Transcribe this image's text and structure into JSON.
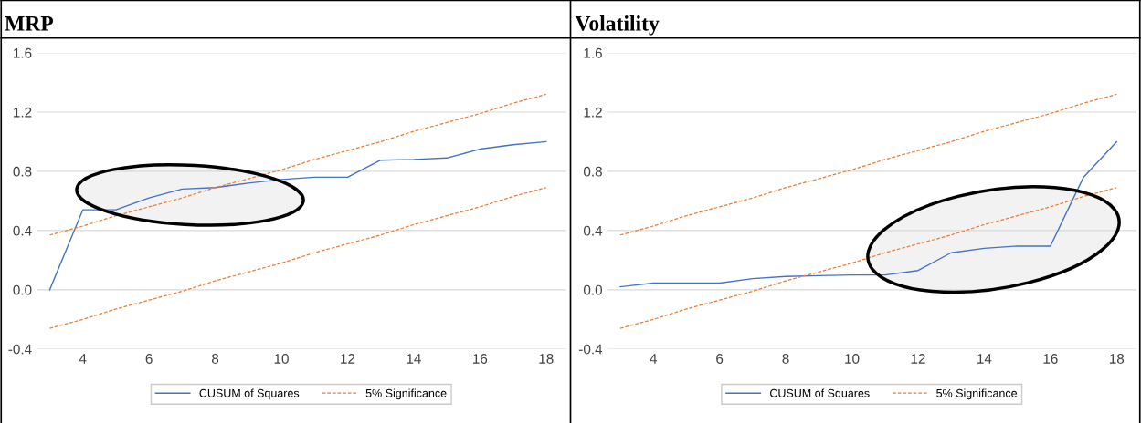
{
  "chart_data": [
    {
      "type": "line",
      "title": "MRP",
      "x": [
        3,
        4,
        5,
        6,
        7,
        8,
        9,
        10,
        11,
        12,
        13,
        14,
        15,
        16,
        17,
        18
      ],
      "xlim": [
        2.6,
        18.6
      ],
      "xticks": [
        4,
        6,
        8,
        10,
        12,
        14,
        16,
        18
      ],
      "ylim": [
        -0.4,
        1.6
      ],
      "yticks": [
        {
          "value": -0.4,
          "label": "-0.4"
        },
        {
          "value": 0,
          "label": "0.0"
        },
        {
          "value": 0.4,
          "label": "0.4"
        },
        {
          "value": 0.8,
          "label": "0.8"
        },
        {
          "value": 1.2,
          "label": "1.2"
        },
        {
          "value": 1.6,
          "label": "1.6"
        }
      ],
      "grid": "y",
      "legend": "bottom",
      "series": [
        {
          "name": "CUSUM of Squares",
          "color": "#4472c4",
          "line_style": "solid",
          "values": [
            0,
            0.54,
            0.54,
            0.62,
            0.68,
            0.69,
            0.72,
            0.745,
            0.76,
            0.76,
            0.875,
            0.88,
            0.89,
            0.95,
            0.98,
            1.0
          ]
        },
        {
          "name": "5% Significance",
          "color": "#ed7d31",
          "line_style": "dashed",
          "values": [
            0.37,
            0.43,
            0.5,
            0.56,
            0.62,
            0.69,
            0.75,
            0.81,
            0.88,
            0.94,
            1.0,
            1.07,
            1.13,
            1.19,
            1.26,
            1.32
          ]
        },
        {
          "color": "#ed7d31",
          "line_style": "dashed",
          "values": [
            -0.26,
            -0.2,
            -0.13,
            -0.07,
            -0.01,
            0.06,
            0.12,
            0.18,
            0.25,
            0.31,
            0.37,
            0.44,
            0.5,
            0.56,
            0.63,
            0.69
          ]
        }
      ]
    },
    {
      "type": "line",
      "title": "Volatility",
      "x": [
        3,
        4,
        5,
        6,
        7,
        8,
        9,
        10,
        11,
        12,
        13,
        14,
        15,
        16,
        17,
        18
      ],
      "xlim": [
        2.6,
        18.6
      ],
      "xticks": [
        4,
        6,
        8,
        10,
        12,
        14,
        16,
        18
      ],
      "ylim": [
        -0.4,
        1.6
      ],
      "yticks": [
        {
          "value": -0.4,
          "label": "-0.4"
        },
        {
          "value": 0,
          "label": "0.0"
        },
        {
          "value": 0.4,
          "label": "0.4"
        },
        {
          "value": 0.8,
          "label": "0.8"
        },
        {
          "value": 1.2,
          "label": "1.2"
        },
        {
          "value": 1.6,
          "label": "1.6"
        }
      ],
      "grid": "y",
      "legend": "bottom",
      "series": [
        {
          "name": "CUSUM of Squares",
          "color": "#4472c4",
          "line_style": "solid",
          "values": [
            0.02,
            0.045,
            0.045,
            0.045,
            0.075,
            0.09,
            0.095,
            0.1,
            0.1,
            0.13,
            0.25,
            0.28,
            0.295,
            0.295,
            0.76,
            1.0
          ]
        },
        {
          "name": "5% Significance",
          "color": "#ed7d31",
          "line_style": "dashed",
          "values": [
            0.37,
            0.43,
            0.5,
            0.56,
            0.62,
            0.69,
            0.75,
            0.81,
            0.88,
            0.94,
            1.0,
            1.07,
            1.13,
            1.19,
            1.26,
            1.32
          ]
        },
        {
          "color": "#ed7d31",
          "line_style": "dashed",
          "values": [
            -0.26,
            -0.2,
            -0.13,
            -0.07,
            -0.01,
            0.06,
            0.12,
            0.18,
            0.25,
            0.31,
            0.37,
            0.44,
            0.5,
            0.56,
            0.63,
            0.69
          ]
        }
      ]
    }
  ]
}
